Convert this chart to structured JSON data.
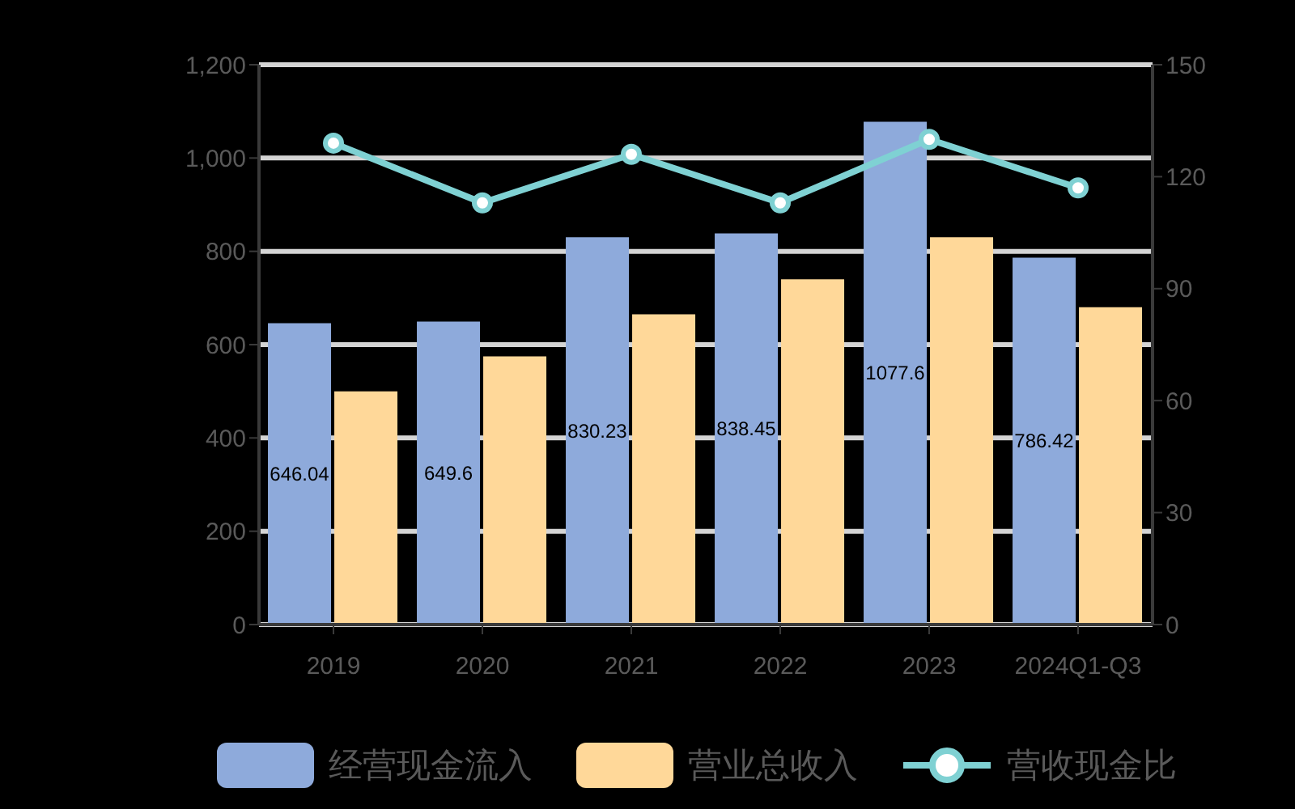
{
  "chart_data": {
    "type": "bar",
    "categories": [
      "2019",
      "2020",
      "2021",
      "2022",
      "2023",
      "2024Q1-Q3"
    ],
    "series": [
      {
        "name": "经营现金流入",
        "color": "#8eaadb",
        "values": [
          646.04,
          649.6,
          830.23,
          838.45,
          1077.6,
          786.42
        ],
        "value_labels": [
          "646.04",
          "649.6",
          "830.23",
          "838.45",
          "1077.6",
          "786.42"
        ]
      },
      {
        "name": "营业总收入",
        "color": "#ffd899",
        "values": [
          500,
          575,
          665,
          740,
          830,
          680
        ]
      },
      {
        "name": "营收现金比",
        "type": "line",
        "axis": "y2",
        "color": "#7fd1d3",
        "values": [
          129,
          113,
          126,
          113,
          130,
          117
        ]
      }
    ],
    "ylim": [
      0,
      1200
    ],
    "yticks": [
      0,
      200,
      400,
      600,
      800,
      {
        "value": 1000,
        "label": "1,000"
      },
      {
        "value": 1200,
        "label": "1,200"
      }
    ],
    "y2lim": [
      0,
      150
    ],
    "y2ticks": [
      0,
      30,
      60,
      90,
      120,
      150
    ],
    "grid": "y",
    "legend": "bottom",
    "marker": "circle"
  }
}
